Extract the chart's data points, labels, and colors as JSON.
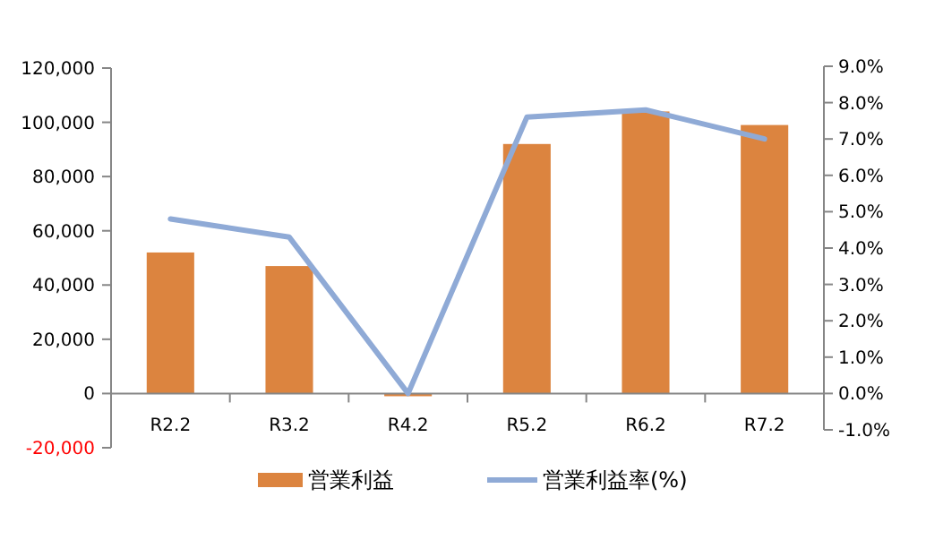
{
  "chart_data": {
    "type": "bar",
    "categories": [
      "R2.2",
      "R3.2",
      "R4.2",
      "R5.2",
      "R6.2",
      "R7.2"
    ],
    "series": [
      {
        "name": "営業利益",
        "color": "#dc843f",
        "values": [
          52000,
          47000,
          -1000,
          92000,
          104000,
          99000
        ]
      },
      {
        "name": "営業利益率(%)",
        "type": "line",
        "axis": "y2",
        "color": "#8faad6",
        "values": [
          4.8,
          4.3,
          0.0,
          7.6,
          7.8,
          7.0
        ]
      }
    ],
    "ylim": [
      -20000,
      120000
    ],
    "yticks": [
      {
        "value": -20000,
        "label": "-20,000"
      },
      {
        "value": 0,
        "label": "0"
      },
      {
        "value": 20000,
        "label": "20,000"
      },
      {
        "value": 40000,
        "label": "40,000"
      },
      {
        "value": 60000,
        "label": "60,000"
      },
      {
        "value": 80000,
        "label": "80,000"
      },
      {
        "value": 100000,
        "label": "100,000"
      },
      {
        "value": 120000,
        "label": "120,000"
      }
    ],
    "y2lim": [
      -1,
      9
    ],
    "y2ticks": [
      {
        "value": -1,
        "label": "-1.0%"
      },
      {
        "value": 0,
        "label": "0.0%"
      },
      {
        "value": 1,
        "label": "1.0%"
      },
      {
        "value": 2,
        "label": "2.0%"
      },
      {
        "value": 3,
        "label": "3.0%"
      },
      {
        "value": 4,
        "label": "4.0%"
      },
      {
        "value": 5,
        "label": "5.0%"
      },
      {
        "value": 6,
        "label": "6.0%"
      },
      {
        "value": 7,
        "label": "7.0%"
      },
      {
        "value": 8,
        "label": "8.0%"
      },
      {
        "value": 9,
        "label": "9.0%"
      }
    ],
    "grid": false,
    "legend": "bottom",
    "marker": "none",
    "line_style": "solid"
  }
}
